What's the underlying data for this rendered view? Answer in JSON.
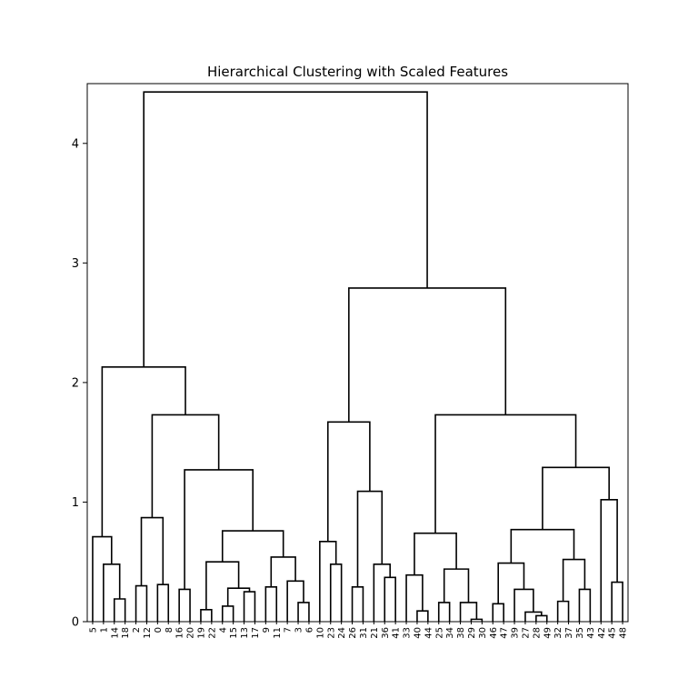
{
  "chart_data": {
    "type": "dendrogram",
    "title": "Hierarchical Clustering with Scaled Features",
    "xlabel": "",
    "ylabel": "",
    "ylim": [
      0,
      4.5
    ],
    "y_ticks": [
      0,
      1,
      2,
      3,
      4
    ],
    "leaf_labels": [
      "5",
      "1",
      "14",
      "18",
      "2",
      "12",
      "0",
      "8",
      "16",
      "20",
      "19",
      "22",
      "4",
      "15",
      "13",
      "17",
      "9",
      "11",
      "7",
      "3",
      "6",
      "10",
      "23",
      "24",
      "26",
      "31",
      "21",
      "36",
      "41",
      "33",
      "40",
      "44",
      "25",
      "34",
      "38",
      "29",
      "30",
      "46",
      "47",
      "39",
      "27",
      "28",
      "49",
      "32",
      "37",
      "35",
      "43",
      "42",
      "45",
      "48"
    ],
    "merges": [
      {
        "left": "14",
        "right": "18",
        "height": 0.19
      },
      {
        "left": "1",
        "right": "c0",
        "height": 0.48
      },
      {
        "left": "5",
        "right": "c1",
        "height": 0.71
      },
      {
        "left": "2",
        "right": "12",
        "height": 0.3
      },
      {
        "left": "0",
        "right": "8",
        "height": 0.31
      },
      {
        "left": "c3",
        "right": "c4",
        "height": 0.87
      },
      {
        "left": "16",
        "right": "20",
        "height": 0.27
      },
      {
        "left": "19",
        "right": "22",
        "height": 0.1
      },
      {
        "left": "4",
        "right": "15",
        "height": 0.13
      },
      {
        "left": "13",
        "right": "17",
        "height": 0.25
      },
      {
        "left": "c8",
        "right": "c9",
        "height": 0.28
      },
      {
        "left": "c7",
        "right": "c10",
        "height": 0.5
      },
      {
        "left": "9",
        "right": "11",
        "height": 0.29
      },
      {
        "left": "3",
        "right": "6",
        "height": 0.16
      },
      {
        "left": "7",
        "right": "c13",
        "height": 0.34
      },
      {
        "left": "c12",
        "right": "c14",
        "height": 0.54
      },
      {
        "left": "c11",
        "right": "c15",
        "height": 0.76
      },
      {
        "left": "c6",
        "right": "c16",
        "height": 1.27
      },
      {
        "left": "c5",
        "right": "c17",
        "height": 1.73
      },
      {
        "left": "c2",
        "right": "c18",
        "height": 2.13
      },
      {
        "left": "23",
        "right": "24",
        "height": 0.48
      },
      {
        "left": "10",
        "right": "c20",
        "height": 0.67
      },
      {
        "left": "26",
        "right": "31",
        "height": 0.29
      },
      {
        "left": "36",
        "right": "41",
        "height": 0.37
      },
      {
        "left": "21",
        "right": "c23",
        "height": 0.48
      },
      {
        "left": "c22",
        "right": "c24",
        "height": 1.09
      },
      {
        "left": "c21",
        "right": "c25",
        "height": 1.67
      },
      {
        "left": "40",
        "right": "44",
        "height": 0.09
      },
      {
        "left": "33",
        "right": "c27",
        "height": 0.39
      },
      {
        "left": "25",
        "right": "34",
        "height": 0.16
      },
      {
        "left": "29",
        "right": "30",
        "height": 0.02
      },
      {
        "left": "38",
        "right": "c30",
        "height": 0.16
      },
      {
        "left": "c29",
        "right": "c31",
        "height": 0.44
      },
      {
        "left": "c28",
        "right": "c32",
        "height": 0.74
      },
      {
        "left": "46",
        "right": "47",
        "height": 0.15
      },
      {
        "left": "28",
        "right": "49",
        "height": 0.05
      },
      {
        "left": "27",
        "right": "c35",
        "height": 0.08
      },
      {
        "left": "39",
        "right": "c36",
        "height": 0.27
      },
      {
        "left": "c34",
        "right": "c37",
        "height": 0.49
      },
      {
        "left": "32",
        "right": "37",
        "height": 0.17
      },
      {
        "left": "35",
        "right": "43",
        "height": 0.27
      },
      {
        "left": "c39",
        "right": "c40",
        "height": 0.52
      },
      {
        "left": "c38",
        "right": "c41",
        "height": 0.77
      },
      {
        "left": "45",
        "right": "48",
        "height": 0.33
      },
      {
        "left": "42",
        "right": "c43",
        "height": 1.02
      },
      {
        "left": "c42",
        "right": "c44",
        "height": 1.29
      },
      {
        "left": "c33",
        "right": "c45",
        "height": 1.73
      },
      {
        "left": "c26",
        "right": "c46",
        "height": 2.79
      },
      {
        "left": "c19",
        "right": "c47",
        "height": 4.43
      }
    ],
    "grid": false,
    "colors": {
      "line": "#000000",
      "background": "#ffffff"
    }
  }
}
